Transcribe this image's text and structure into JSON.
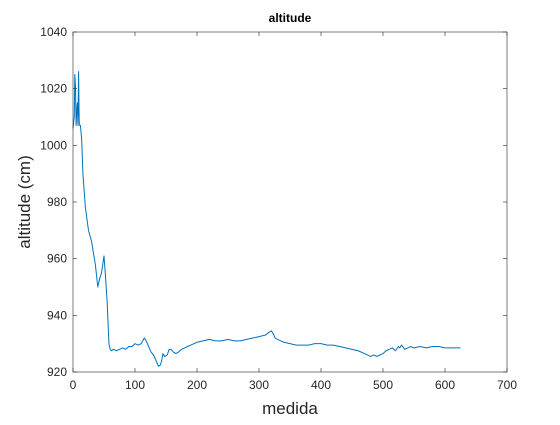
{
  "chart_data": {
    "type": "line",
    "title": "altitude",
    "xlabel": "medida",
    "ylabel": "altitude (cm)",
    "xlim": [
      0,
      700
    ],
    "ylim": [
      920,
      1040
    ],
    "xticks": [
      0,
      100,
      200,
      300,
      400,
      500,
      600,
      700
    ],
    "yticks": [
      920,
      940,
      960,
      980,
      1000,
      1020,
      1040
    ],
    "grid": false,
    "legend": "none",
    "series": [
      {
        "color": "#0072BD",
        "x": [
          0,
          2,
          3,
          4,
          5,
          6,
          7,
          8,
          9,
          10,
          11,
          12,
          14,
          16,
          20,
          25,
          30,
          33,
          36,
          40,
          43,
          46,
          50,
          52,
          55,
          57,
          58,
          60,
          62,
          65,
          70,
          75,
          80,
          85,
          90,
          95,
          100,
          105,
          110,
          115,
          118,
          122,
          126,
          130,
          134,
          138,
          141,
          143,
          145,
          148,
          152,
          155,
          158,
          162,
          166,
          170,
          175,
          180,
          185,
          190,
          195,
          200,
          210,
          220,
          230,
          240,
          250,
          260,
          270,
          280,
          290,
          300,
          310,
          316,
          320,
          323,
          326,
          330,
          335,
          340,
          350,
          360,
          370,
          380,
          390,
          400,
          410,
          420,
          430,
          440,
          450,
          460,
          470,
          480,
          485,
          490,
          495,
          500,
          505,
          510,
          515,
          520,
          525,
          527,
          530,
          535,
          540,
          545,
          550,
          560,
          570,
          580,
          590,
          600,
          610,
          620,
          625
        ],
        "y": [
          1006,
          1010,
          1025,
          1021,
          1007,
          1012,
          1015,
          1007,
          1026,
          1008,
          1007,
          1007,
          1002,
          990,
          978,
          970,
          966,
          962,
          958,
          950,
          953,
          955,
          961,
          955,
          945,
          935,
          930,
          928,
          927.5,
          928,
          927.5,
          928,
          928.5,
          928,
          929,
          929,
          930,
          929.5,
          930,
          932,
          931,
          929,
          927,
          926,
          924,
          922,
          922.5,
          924,
          926.5,
          925.5,
          926,
          928,
          928,
          927,
          926.5,
          927,
          928,
          928.5,
          929,
          929.5,
          930,
          930.5,
          931,
          931.5,
          931,
          931,
          931.5,
          931,
          931,
          931.5,
          932,
          932.5,
          933,
          934,
          934.5,
          933.5,
          932,
          931.5,
          931,
          930.5,
          930,
          929.5,
          929.5,
          929.5,
          930,
          930,
          929.5,
          929.5,
          929,
          928.5,
          928,
          927.5,
          926.5,
          925.5,
          926,
          925.5,
          926,
          926.5,
          927.5,
          928,
          928.5,
          927.5,
          929,
          928.5,
          929.5,
          928,
          928.5,
          929,
          928.5,
          929,
          928.5,
          929,
          929,
          928.5,
          928.5,
          928.5,
          928.5
        ]
      }
    ]
  }
}
